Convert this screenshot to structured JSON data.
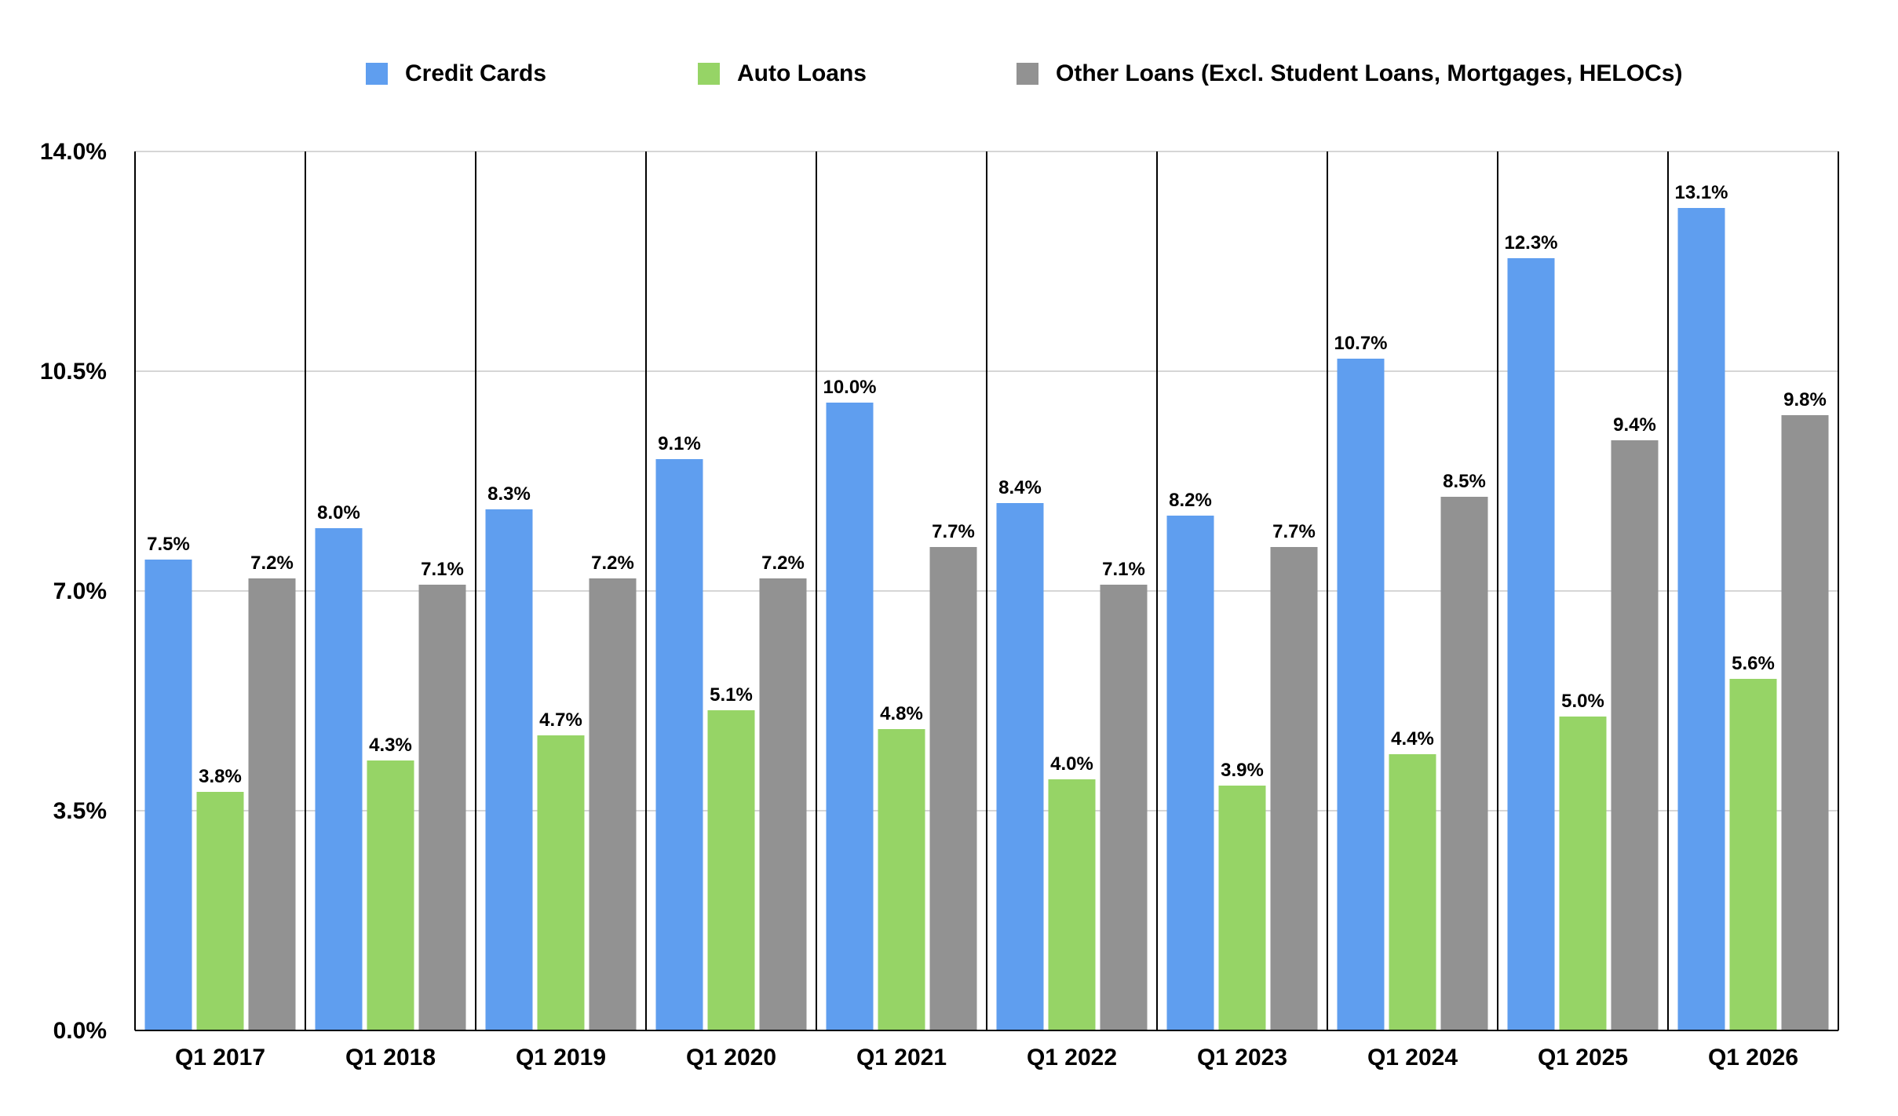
{
  "chart_data": {
    "type": "bar",
    "title": "",
    "xlabel": "",
    "ylabel": "",
    "categories": [
      "Q1 2017",
      "Q1 2018",
      "Q1 2019",
      "Q1 2020",
      "Q1 2021",
      "Q1 2022",
      "Q1 2023",
      "Q1 2024",
      "Q1 2025",
      "Q1 2026"
    ],
    "series": [
      {
        "name": "Credit Cards",
        "color": "#5f9eef",
        "values": [
          7.5,
          8.0,
          8.3,
          9.1,
          10.0,
          8.4,
          8.2,
          10.7,
          12.3,
          13.1
        ],
        "labels": [
          "7.5%",
          "8.0%",
          "8.3%",
          "9.1%",
          "10.0%",
          "8.4%",
          "8.2%",
          "10.7%",
          "12.3%",
          "13.1%"
        ]
      },
      {
        "name": "Auto Loans",
        "color": "#96d466",
        "values": [
          3.8,
          4.3,
          4.7,
          5.1,
          4.8,
          4.0,
          3.9,
          4.4,
          5.0,
          5.6
        ],
        "labels": [
          "3.8%",
          "4.3%",
          "4.7%",
          "5.1%",
          "4.8%",
          "4.0%",
          "3.9%",
          "4.4%",
          "5.0%",
          "5.6%"
        ]
      },
      {
        "name": "Other Loans (Excl. Student Loans, Mortgages, HELOCs)",
        "color": "#929292",
        "values": [
          7.2,
          7.1,
          7.2,
          7.2,
          7.7,
          7.1,
          7.7,
          8.5,
          9.4,
          9.8
        ],
        "labels": [
          "7.2%",
          "7.1%",
          "7.2%",
          "7.2%",
          "7.7%",
          "7.1%",
          "7.7%",
          "8.5%",
          "9.4%",
          "9.8%"
        ]
      }
    ],
    "ylim": [
      0,
      14
    ],
    "yticks": [
      0,
      3.5,
      7,
      10.5,
      14
    ],
    "ytick_labels": [
      "0.0%",
      "3.5%",
      "7.0%",
      "10.5%",
      "14.0%"
    ],
    "grid": true,
    "legend": "top"
  }
}
